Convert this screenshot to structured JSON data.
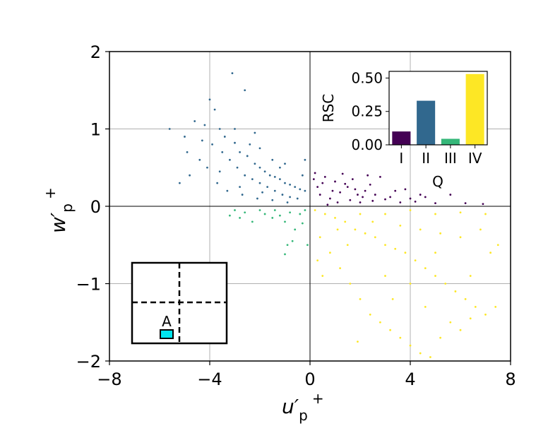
{
  "chart_data": [
    {
      "type": "scatter",
      "xlabel_main": "u′",
      "xlabel_sub": "p",
      "xlabel_sup": "+",
      "ylabel_main": "w′",
      "ylabel_sub": "p",
      "ylabel_sup": "+",
      "xlim": [
        -8,
        8
      ],
      "ylim": [
        -2,
        2
      ],
      "xticks": [
        -8,
        -4,
        0,
        4,
        8
      ],
      "yticks": [
        -2,
        -1,
        0,
        1,
        2
      ],
      "xtick_labels": [
        "−8",
        "−4",
        "0",
        "4",
        "8"
      ],
      "ytick_labels": [
        "−2",
        "−1",
        "0",
        "1",
        "2"
      ],
      "grid": true,
      "quadrant_colors": {
        "I": "#440154",
        "II": "#31688e",
        "III": "#35b779",
        "IV": "#fde725"
      },
      "series": [
        {
          "quadrant": "I",
          "points": [
            [
              0.2,
              0.43
            ],
            [
              0.6,
              0.38
            ],
            [
              1.0,
              0.32
            ],
            [
              1.4,
              0.29
            ],
            [
              1.8,
              0.22
            ],
            [
              2.2,
              0.2
            ],
            [
              2.6,
              0.15
            ],
            [
              3.2,
              0.12
            ],
            [
              0.4,
              0.15
            ],
            [
              0.8,
              0.1
            ],
            [
              1.2,
              0.18
            ],
            [
              1.6,
              0.08
            ],
            [
              2.0,
              0.05
            ],
            [
              2.5,
              0.07
            ],
            [
              3.0,
              0.09
            ],
            [
              3.6,
              0.05
            ],
            [
              4.2,
              0.06
            ],
            [
              5.0,
              0.04
            ],
            [
              6.2,
              0.04
            ],
            [
              6.9,
              0.03
            ],
            [
              0.3,
              0.25
            ],
            [
              0.9,
              0.2
            ],
            [
              1.3,
              0.42
            ],
            [
              2.4,
              0.28
            ],
            [
              2.8,
              0.38
            ],
            [
              1.1,
              0.05
            ],
            [
              0.5,
              0.3
            ],
            [
              1.7,
              0.35
            ],
            [
              4.0,
              0.1
            ],
            [
              4.6,
              0.12
            ],
            [
              5.6,
              0.15
            ],
            [
              3.4,
              0.2
            ],
            [
              2.1,
              0.12
            ],
            [
              0.7,
              0.02
            ],
            [
              1.5,
              0.25
            ],
            [
              3.8,
              0.22
            ],
            [
              0.15,
              0.35
            ],
            [
              2.3,
              0.4
            ],
            [
              1.9,
              0.15
            ],
            [
              4.4,
              0.15
            ]
          ]
        },
        {
          "quadrant": "II",
          "points": [
            [
              -5.6,
              1.0
            ],
            [
              -4.6,
              1.1
            ],
            [
              -4.2,
              1.05
            ],
            [
              -4.0,
              1.38
            ],
            [
              -3.8,
              1.25
            ],
            [
              -3.1,
              1.72
            ],
            [
              -2.6,
              1.5
            ],
            [
              -3.6,
              1.0
            ],
            [
              -3.4,
              0.9
            ],
            [
              -3.0,
              0.82
            ],
            [
              -2.8,
              0.7
            ],
            [
              -2.5,
              0.65
            ],
            [
              -2.2,
              0.55
            ],
            [
              -2.0,
              0.5
            ],
            [
              -1.8,
              0.45
            ],
            [
              -1.6,
              0.4
            ],
            [
              -1.4,
              0.38
            ],
            [
              -1.2,
              0.35
            ],
            [
              -1.0,
              0.3
            ],
            [
              -0.8,
              0.28
            ],
            [
              -0.6,
              0.25
            ],
            [
              -0.4,
              0.22
            ],
            [
              -0.2,
              0.2
            ],
            [
              -3.9,
              0.8
            ],
            [
              -3.5,
              0.7
            ],
            [
              -3.2,
              0.6
            ],
            [
              -2.9,
              0.5
            ],
            [
              -2.6,
              0.4
            ],
            [
              -2.3,
              0.35
            ],
            [
              -2.0,
              0.3
            ],
            [
              -1.7,
              0.25
            ],
            [
              -1.4,
              0.2
            ],
            [
              -1.1,
              0.15
            ],
            [
              -0.8,
              0.12
            ],
            [
              -0.5,
              0.1
            ],
            [
              -4.4,
              0.6
            ],
            [
              -4.8,
              0.4
            ],
            [
              -5.2,
              0.3
            ],
            [
              -4.1,
              0.5
            ],
            [
              -3.7,
              0.3
            ],
            [
              -3.3,
              0.2
            ],
            [
              -2.7,
              0.15
            ],
            [
              -2.1,
              0.1
            ],
            [
              -1.5,
              0.08
            ],
            [
              -0.9,
              0.05
            ],
            [
              -0.3,
              0.4
            ],
            [
              -0.2,
              0.6
            ],
            [
              -1.0,
              0.55
            ],
            [
              -1.5,
              0.6
            ],
            [
              -2.4,
              0.8
            ],
            [
              -2.0,
              0.75
            ],
            [
              -1.2,
              0.5
            ],
            [
              -3.0,
              1.0
            ],
            [
              -2.2,
              0.95
            ],
            [
              -4.3,
              0.85
            ],
            [
              -5.0,
              0.9
            ],
            [
              -4.9,
              0.7
            ],
            [
              -3.6,
              0.45
            ],
            [
              -2.8,
              0.25
            ],
            [
              -1.9,
              0.18
            ]
          ]
        },
        {
          "quadrant": "III",
          "points": [
            [
              -3.2,
              -0.12
            ],
            [
              -2.6,
              -0.08
            ],
            [
              -2.0,
              -0.05
            ],
            [
              -1.8,
              -0.1
            ],
            [
              -1.5,
              -0.15
            ],
            [
              -1.2,
              -0.12
            ],
            [
              -1.0,
              -0.2
            ],
            [
              -0.8,
              -0.08
            ],
            [
              -0.6,
              -0.3
            ],
            [
              -0.4,
              -0.1
            ],
            [
              -0.2,
              -0.05
            ],
            [
              -0.9,
              -0.5
            ],
            [
              -1.0,
              -0.62
            ],
            [
              -0.1,
              -0.5
            ],
            [
              -2.3,
              -0.2
            ],
            [
              -1.4,
              -0.05
            ],
            [
              -0.3,
              -0.22
            ],
            [
              -3.0,
              -0.05
            ],
            [
              -2.8,
              -0.15
            ],
            [
              -0.7,
              -0.45
            ]
          ]
        },
        {
          "quadrant": "IV",
          "points": [
            [
              0.2,
              -0.05
            ],
            [
              0.6,
              -0.1
            ],
            [
              1.0,
              -0.15
            ],
            [
              1.4,
              -0.2
            ],
            [
              1.8,
              -0.3
            ],
            [
              2.2,
              -0.35
            ],
            [
              2.6,
              -0.4
            ],
            [
              3.0,
              -0.5
            ],
            [
              3.4,
              -0.55
            ],
            [
              3.8,
              -0.6
            ],
            [
              4.2,
              -0.7
            ],
            [
              4.6,
              -0.8
            ],
            [
              5.0,
              -0.9
            ],
            [
              5.4,
              -1.0
            ],
            [
              5.8,
              -1.1
            ],
            [
              6.2,
              -1.2
            ],
            [
              6.6,
              -1.3
            ],
            [
              7.0,
              -1.4
            ],
            [
              7.4,
              -1.3
            ],
            [
              0.4,
              -0.4
            ],
            [
              0.8,
              -0.6
            ],
            [
              1.2,
              -0.8
            ],
            [
              1.6,
              -1.0
            ],
            [
              2.0,
              -1.2
            ],
            [
              2.4,
              -1.4
            ],
            [
              2.8,
              -1.5
            ],
            [
              3.2,
              -1.6
            ],
            [
              3.6,
              -1.7
            ],
            [
              4.0,
              -1.8
            ],
            [
              4.4,
              -1.9
            ],
            [
              4.8,
              -1.95
            ],
            [
              5.2,
              -1.7
            ],
            [
              5.6,
              -1.5
            ],
            [
              6.0,
              -1.6
            ],
            [
              6.4,
              -1.45
            ],
            [
              1.1,
              -0.3
            ],
            [
              2.5,
              -0.2
            ],
            [
              3.6,
              -0.25
            ],
            [
              4.4,
              -0.3
            ],
            [
              5.2,
              -0.35
            ],
            [
              6.0,
              -0.4
            ],
            [
              6.8,
              -0.3
            ],
            [
              7.5,
              -0.5
            ],
            [
              7.2,
              -0.6
            ],
            [
              0.3,
              -0.7
            ],
            [
              0.5,
              -0.9
            ],
            [
              1.5,
              -0.5
            ],
            [
              3.0,
              -0.9
            ],
            [
              4.0,
              -1.0
            ],
            [
              5.0,
              -0.6
            ],
            [
              2.0,
              -0.1
            ],
            [
              3.0,
              -0.1
            ],
            [
              4.0,
              -0.05
            ],
            [
              5.0,
              -0.1
            ],
            [
              6.0,
              -0.08
            ],
            [
              7.0,
              -0.1
            ],
            [
              1.9,
              -1.75
            ],
            [
              3.3,
              -1.2
            ],
            [
              4.6,
              -1.3
            ],
            [
              6.4,
              -0.9
            ]
          ]
        }
      ]
    },
    {
      "type": "bar",
      "categories": [
        "I",
        "II",
        "III",
        "IV"
      ],
      "values": [
        0.1,
        0.33,
        0.045,
        0.53
      ],
      "colors": [
        "#440154",
        "#31688e",
        "#35b779",
        "#fde725"
      ],
      "ylabel": "RSC",
      "xlabel": "Q",
      "ylim": [
        0,
        0.55
      ],
      "yticks": [
        0.0,
        0.25,
        0.5
      ],
      "ytick_labels": [
        "0.00",
        "0.25",
        "0.50"
      ]
    }
  ],
  "mini_map": {
    "label": "A",
    "marker_color": "#00e5ee"
  }
}
